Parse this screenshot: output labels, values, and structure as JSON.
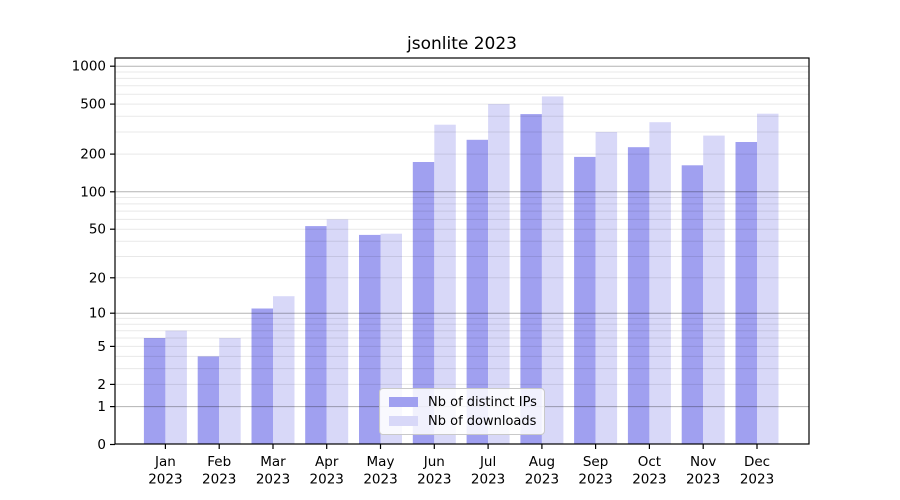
{
  "chart_data": {
    "type": "bar",
    "title": "jsonlite 2023",
    "categories": [
      "Jan",
      "Feb",
      "Mar",
      "Apr",
      "May",
      "Jun",
      "Jul",
      "Aug",
      "Sep",
      "Oct",
      "Nov",
      "Dec"
    ],
    "x_year": "2023",
    "series": [
      {
        "name": "Nb of distinct IPs",
        "color": "#a0a0f0",
        "values": [
          6,
          4,
          11,
          53,
          45,
          173,
          260,
          417,
          190,
          227,
          163,
          250
        ]
      },
      {
        "name": "Nb of downloads",
        "color": "#d8d8f8",
        "values": [
          7,
          6,
          14,
          60,
          46,
          343,
          500,
          576,
          300,
          359,
          281,
          420
        ]
      }
    ],
    "y_scale": "log1p",
    "ylim": [
      0,
      1000
    ],
    "y_ticks": [
      0,
      1,
      2,
      5,
      10,
      20,
      50,
      100,
      200,
      500,
      1000
    ],
    "grid": {
      "on": true,
      "major": [
        1,
        10,
        100,
        1000
      ],
      "minor": [
        2,
        3,
        4,
        5,
        6,
        7,
        8,
        9,
        20,
        30,
        40,
        50,
        60,
        70,
        80,
        90,
        200,
        300,
        400,
        500,
        600,
        700,
        800,
        900
      ]
    },
    "legend_position": "lower center",
    "xlabel": "",
    "ylabel": ""
  }
}
